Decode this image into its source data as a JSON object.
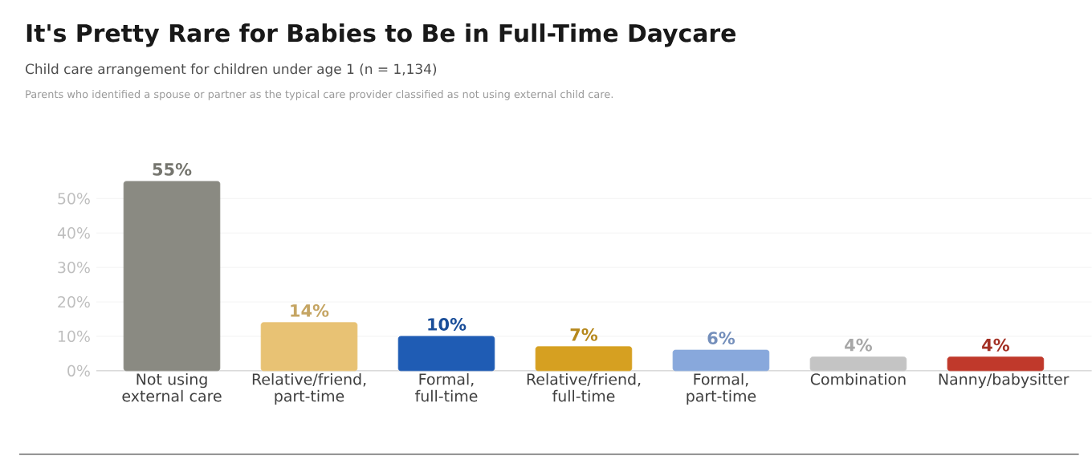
{
  "chart_data": {
    "type": "bar",
    "title": "It's Pretty Rare for Babies to Be in Full-Time Daycare",
    "subtitle": "Child care arrangement for children under age 1 (n = 1,134)",
    "annotations": [
      "Parents who identified a spouse or partner as the typical care provider classified as not using external child care."
    ],
    "categories": [
      "Not using external care",
      "Relative/friend, part-time",
      "Formal, full-time",
      "Relative/friend, full-time",
      "Formal, part-time",
      "Combination",
      "Nanny/babysitter"
    ],
    "values": [
      55,
      14,
      10,
      7,
      6,
      4,
      4
    ],
    "value_labels": [
      "55%",
      "14%",
      "10%",
      "7%",
      "6%",
      "4%",
      "4%"
    ],
    "colors": [
      "#8a8a82",
      "#e8c274",
      "#1f5cb4",
      "#d6a021",
      "#88a8dc",
      "#c4c4c4",
      "#c0392b"
    ],
    "ylim": [
      0,
      55
    ],
    "yticks": [
      {
        "value": 0,
        "label": "0%"
      },
      {
        "value": 10,
        "label": "10%"
      },
      {
        "value": 20,
        "label": "20%"
      },
      {
        "value": 30,
        "label": "30%"
      },
      {
        "value": 40,
        "label": "40%"
      },
      {
        "value": 50,
        "label": "50%"
      }
    ],
    "grid": "y"
  }
}
